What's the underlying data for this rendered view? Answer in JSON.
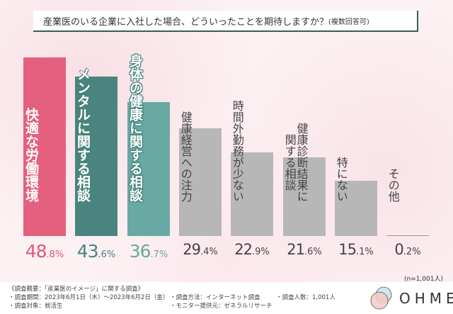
{
  "title": {
    "main": "産業医のいる企業に入社した場合、どういったことを期待しますか？",
    "sub": "(複数回答可)"
  },
  "chart_data": {
    "type": "bar",
    "title": "産業医のいる企業に入社した場合、どういったことを期待しますか？(複数回答可)",
    "categories": [
      "快適な労働環境",
      "メンタルに関する相談",
      "身体の健康に関する相談",
      "健康経営への注力",
      "時間外勤務が少ない",
      "健康診断結果に関する相談",
      "特にない",
      "その他"
    ],
    "label_lines": [
      [
        "快適な労働環境"
      ],
      [
        "メンタルに関する相談"
      ],
      [
        "身体の健康に関する相談"
      ],
      [
        "健康経営への注力"
      ],
      [
        "時間外勤務が少ない"
      ],
      [
        "健康診断結果に",
        "関する相談"
      ],
      [
        "特にない"
      ],
      [
        "その他"
      ]
    ],
    "values": [
      48.8,
      43.6,
      36.7,
      29.4,
      22.9,
      21.6,
      15.1,
      0.2
    ],
    "unit": "%",
    "colors": [
      "#e5607e",
      "#4a847e",
      "#6aa9a3",
      "#b7b7b7",
      "#b7b7b7",
      "#b7b7b7",
      "#b7b7b7",
      "#b7b7b7"
    ],
    "value_colors": [
      "#e0587a",
      "#4a847e",
      "#6aa9a3",
      "#444444",
      "#444444",
      "#444444",
      "#444444",
      "#444444"
    ],
    "grid": false
  },
  "sample": "(n=1,001人)",
  "notes": {
    "overview": "《調査概要：「産業医のイメージ」に関する調査》",
    "period": "・調査期間：2023年6月1日（木）〜2023年6月2日（金）",
    "target": "・調査対象：就活生",
    "method": "・調査方法：インターネット調査",
    "provider": "・モニター提供元：ゼネラルリサーチ",
    "count": "・調査人数：1,001人"
  },
  "logo": {
    "text": "OHME"
  }
}
